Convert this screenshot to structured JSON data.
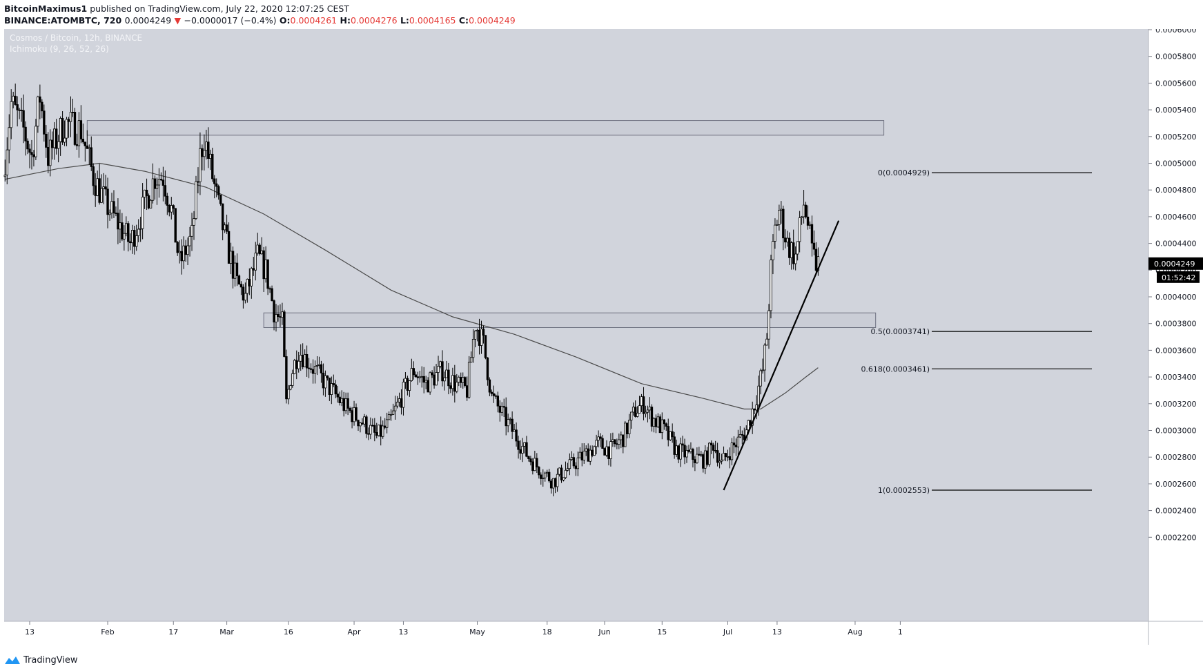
{
  "header": {
    "author": "BitcoinMaximus1",
    "published": " published on TradingView.com, July 22, 2020 12:07:25 CEST",
    "symbol": "BINANCE:ATOMBTC, 720",
    "last": "0.0004249",
    "change": "−0.0000017 (−0.4%)",
    "o_label": "O:",
    "o_value": "0.0004261",
    "h_label": "H:",
    "h_value": "0.0004276",
    "l_label": "L:",
    "l_value": "0.0004165",
    "c_label": "C:",
    "c_value": "0.0004249"
  },
  "legend": {
    "line1": "Cosmos / Bitcoin, 12h, BINANCE",
    "line2": "Ichimoku (9, 26, 52, 26)"
  },
  "colors": {
    "background": "#d1d4dc",
    "candle": "#000000",
    "ma": "#4a4a4a",
    "price_tag": "#000000",
    "down": "#e53935"
  },
  "footer": {
    "brand": "TradingView"
  },
  "chart_data": {
    "type": "candlestick",
    "title": "Cosmos / Bitcoin, 12h, BINANCE",
    "ylim": [
      0.0002,
      0.0006
    ],
    "xlim_days_label_range": "Jan 2020 – Aug 2020",
    "yticks": [
      "0.0006000",
      "0.0005800",
      "0.0005600",
      "0.0005400",
      "0.0005200",
      "0.0005000",
      "0.0004800",
      "0.0004600",
      "0.0004400",
      "0.0004200",
      "0.0004000",
      "0.0003800",
      "0.0003600",
      "0.0003400",
      "0.0003200",
      "0.0003000",
      "0.0002800",
      "0.0002600",
      "0.0002400",
      "0.0002200"
    ],
    "xticks": [
      {
        "label": "13",
        "date": "2020-01-13"
      },
      {
        "label": "Feb",
        "date": "2020-02-01"
      },
      {
        "label": "17",
        "date": "2020-02-17"
      },
      {
        "label": "Mar",
        "date": "2020-03-01"
      },
      {
        "label": "16",
        "date": "2020-03-16"
      },
      {
        "label": "Apr",
        "date": "2020-04-01"
      },
      {
        "label": "13",
        "date": "2020-04-13"
      },
      {
        "label": "May",
        "date": "2020-05-01"
      },
      {
        "label": "18",
        "date": "2020-05-18"
      },
      {
        "label": "Jun",
        "date": "2020-06-01"
      },
      {
        "label": "15",
        "date": "2020-06-15"
      },
      {
        "label": "Jul",
        "date": "2020-07-01"
      },
      {
        "label": "13",
        "date": "2020-07-13"
      },
      {
        "label": "Aug",
        "date": "2020-08-01"
      },
      {
        "label": "1",
        "date": "2020-08-12"
      }
    ],
    "price_anchors": [
      [
        "2020-01-07",
        0.00049
      ],
      [
        "2020-01-09",
        0.000545
      ],
      [
        "2020-01-12",
        0.000525
      ],
      [
        "2020-01-14",
        0.000505
      ],
      [
        "2020-01-16",
        0.00055
      ],
      [
        "2020-01-18",
        0.000505
      ],
      [
        "2020-01-22",
        0.00053
      ],
      [
        "2020-01-26",
        0.000525
      ],
      [
        "2020-01-29",
        0.00049
      ],
      [
        "2020-02-01",
        0.00047
      ],
      [
        "2020-02-04",
        0.000455
      ],
      [
        "2020-02-07",
        0.00044
      ],
      [
        "2020-02-10",
        0.000465
      ],
      [
        "2020-02-13",
        0.00049
      ],
      [
        "2020-02-15",
        0.00049
      ],
      [
        "2020-02-17",
        0.000465
      ],
      [
        "2020-02-19",
        0.000425
      ],
      [
        "2020-02-22",
        0.000445
      ],
      [
        "2020-02-24",
        0.000505
      ],
      [
        "2020-02-25",
        0.00052
      ],
      [
        "2020-02-27",
        0.00049
      ],
      [
        "2020-03-01",
        0.000445
      ],
      [
        "2020-03-04",
        0.00041
      ],
      [
        "2020-03-06",
        0.0004
      ],
      [
        "2020-03-09",
        0.00043
      ],
      [
        "2020-03-11",
        0.00042
      ],
      [
        "2020-03-13",
        0.00039
      ],
      [
        "2020-03-15",
        0.00038
      ],
      [
        "2020-03-16",
        0.00032
      ],
      [
        "2020-03-17",
        0.00034
      ],
      [
        "2020-03-19",
        0.00036
      ],
      [
        "2020-03-23",
        0.000345
      ],
      [
        "2020-03-27",
        0.00033
      ],
      [
        "2020-03-31",
        0.000315
      ],
      [
        "2020-04-04",
        0.000305
      ],
      [
        "2020-04-07",
        0.000295
      ],
      [
        "2020-04-10",
        0.000305
      ],
      [
        "2020-04-13",
        0.000325
      ],
      [
        "2020-04-16",
        0.000345
      ],
      [
        "2020-04-19",
        0.000335
      ],
      [
        "2020-04-23",
        0.000345
      ],
      [
        "2020-04-26",
        0.000335
      ],
      [
        "2020-04-29",
        0.00033
      ],
      [
        "2020-05-01",
        0.00038
      ],
      [
        "2020-05-03",
        0.000365
      ],
      [
        "2020-05-05",
        0.000325
      ],
      [
        "2020-05-08",
        0.00031
      ],
      [
        "2020-05-11",
        0.000295
      ],
      [
        "2020-05-14",
        0.00028
      ],
      [
        "2020-05-17",
        0.00027
      ],
      [
        "2020-05-20",
        0.000262
      ],
      [
        "2020-05-23",
        0.00027
      ],
      [
        "2020-05-27",
        0.00028
      ],
      [
        "2020-05-31",
        0.00029
      ],
      [
        "2020-06-03",
        0.000285
      ],
      [
        "2020-06-06",
        0.000295
      ],
      [
        "2020-06-09",
        0.000315
      ],
      [
        "2020-06-11",
        0.00032
      ],
      [
        "2020-06-13",
        0.00031
      ],
      [
        "2020-06-16",
        0.0003
      ],
      [
        "2020-06-19",
        0.000285
      ],
      [
        "2020-06-23",
        0.00028
      ],
      [
        "2020-06-26",
        0.000278
      ],
      [
        "2020-06-28",
        0.00029
      ],
      [
        "2020-06-30",
        0.000275
      ],
      [
        "2020-07-02",
        0.000285
      ],
      [
        "2020-07-04",
        0.000292
      ],
      [
        "2020-07-06",
        0.0003
      ],
      [
        "2020-07-08",
        0.00032
      ],
      [
        "2020-07-10",
        0.000345
      ],
      [
        "2020-07-11",
        0.00037
      ],
      [
        "2020-07-12",
        0.00042
      ],
      [
        "2020-07-13",
        0.00045
      ],
      [
        "2020-07-14",
        0.000465
      ],
      [
        "2020-07-16",
        0.00044
      ],
      [
        "2020-07-18",
        0.00043
      ],
      [
        "2020-07-20",
        0.00047
      ],
      [
        "2020-07-21",
        0.000455
      ],
      [
        "2020-07-22",
        0.000432
      ],
      [
        "2020-07-23",
        0.000425
      ]
    ],
    "moving_average": [
      [
        "2020-01-07",
        0.000488
      ],
      [
        "2020-01-20",
        0.000496
      ],
      [
        "2020-01-30",
        0.0005
      ],
      [
        "2020-02-10",
        0.000494
      ],
      [
        "2020-02-25",
        0.000482
      ],
      [
        "2020-03-10",
        0.000462
      ],
      [
        "2020-03-25",
        0.000435
      ],
      [
        "2020-04-10",
        0.000405
      ],
      [
        "2020-04-25",
        0.000385
      ],
      [
        "2020-05-10",
        0.000372
      ],
      [
        "2020-05-25",
        0.000355
      ],
      [
        "2020-06-10",
        0.000335
      ],
      [
        "2020-06-25",
        0.000324
      ],
      [
        "2020-07-05",
        0.000316
      ],
      [
        "2020-07-09",
        0.000316
      ],
      [
        "2020-07-15",
        0.000328
      ],
      [
        "2020-07-20",
        0.00034
      ],
      [
        "2020-07-23",
        0.000347
      ]
    ],
    "annotations": {
      "resistance_zones": [
        {
          "from": "2020-01-27",
          "to": "2020-08-08",
          "low": 0.000521,
          "high": 0.000532
        },
        {
          "from": "2020-03-10",
          "to": "2020-08-06",
          "low": 0.000377,
          "high": 0.000388
        }
      ],
      "fibonacci": [
        {
          "label": "0(0.0004929)",
          "value": 0.0004929
        },
        {
          "label": "0.5(0.0003741)",
          "value": 0.0003741
        },
        {
          "label": "0.618(0.0003461)",
          "value": 0.0003461
        },
        {
          "label": "1(0.0002553)",
          "value": 0.0002553
        }
      ],
      "trendline": {
        "from": [
          "2020-06-30",
          0.0002553
        ],
        "to": [
          "2020-07-28",
          0.000457
        ]
      }
    },
    "last_price": "0.0004249",
    "countdown": "01:52:42"
  }
}
